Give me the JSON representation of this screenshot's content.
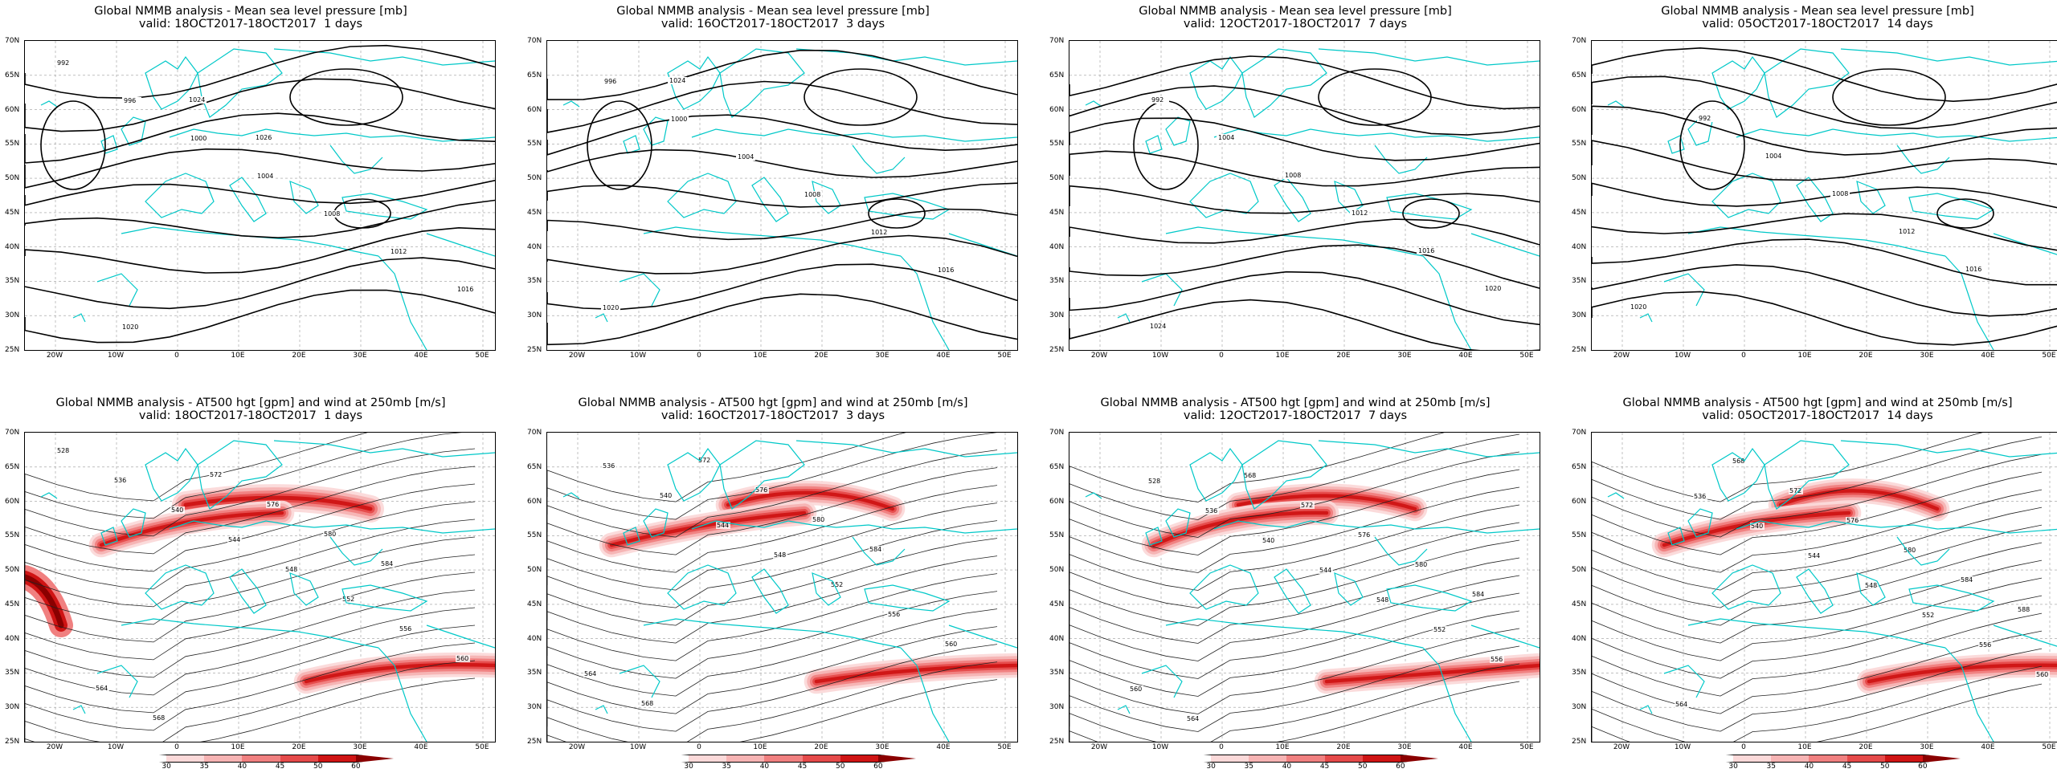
{
  "panels": [
    {
      "title": "Global NMMB analysis - Mean sea level pressure [mb]",
      "valid": "valid: 18OCT2017-18OCT2017  1 days",
      "kind": "mslp",
      "labels": [
        "992",
        "996",
        "1000",
        "1004",
        "1008",
        "1012",
        "1016",
        "1020",
        "1024",
        "1026"
      ]
    },
    {
      "title": "Global NMMB analysis - Mean sea level pressure [mb]",
      "valid": "valid: 16OCT2017-18OCT2017  3 days",
      "kind": "mslp",
      "labels": [
        "996",
        "1000",
        "1004",
        "1008",
        "1012",
        "1016",
        "1020",
        "1024"
      ]
    },
    {
      "title": "Global NMMB analysis - Mean sea level pressure [mb]",
      "valid": "valid: 12OCT2017-18OCT2017  7 days",
      "kind": "mslp",
      "labels": [
        "992",
        "1004",
        "1008",
        "1012",
        "1016",
        "1020",
        "1024"
      ]
    },
    {
      "title": "Global NMMB analysis - Mean sea level pressure [mb]",
      "valid": "valid: 05OCT2017-18OCT2017  14 days",
      "kind": "mslp",
      "labels": [
        "992",
        "1004",
        "1008",
        "1012",
        "1016",
        "1020"
      ]
    },
    {
      "title": "Global NMMB analysis - AT500 hgt [gpm] and wind at 250mb [m/s]",
      "valid": "valid: 18OCT2017-18OCT2017  1 days",
      "kind": "z500",
      "labels": [
        "528",
        "536",
        "540",
        "544",
        "548",
        "552",
        "556",
        "560",
        "564",
        "568",
        "572",
        "576",
        "580",
        "584"
      ]
    },
    {
      "title": "Global NMMB analysis - AT500 hgt [gpm] and wind at 250mb [m/s]",
      "valid": "valid: 16OCT2017-18OCT2017  3 days",
      "kind": "z500",
      "labels": [
        "536",
        "540",
        "544",
        "548",
        "552",
        "556",
        "560",
        "564",
        "568",
        "572",
        "576",
        "580",
        "584"
      ]
    },
    {
      "title": "Global NMMB analysis - AT500 hgt [gpm] and wind at 250mb [m/s]",
      "valid": "valid: 12OCT2017-18OCT2017  7 days",
      "kind": "z500",
      "labels": [
        "528",
        "536",
        "540",
        "544",
        "548",
        "552",
        "556",
        "560",
        "564",
        "568",
        "572",
        "576",
        "580",
        "584"
      ]
    },
    {
      "title": "Global NMMB analysis - AT500 hgt [gpm] and wind at 250mb [m/s]",
      "valid": "valid: 05OCT2017-18OCT2017  14 days",
      "kind": "z500",
      "labels": [
        "536",
        "540",
        "544",
        "548",
        "552",
        "556",
        "560",
        "564",
        "568",
        "572",
        "576",
        "580",
        "584",
        "588"
      ]
    }
  ],
  "lat_labels": [
    "70N",
    "65N",
    "60N",
    "55N",
    "50N",
    "45N",
    "40N",
    "35N",
    "30N",
    "25N"
  ],
  "lon_labels": [
    "20W",
    "10W",
    "0",
    "10E",
    "20E",
    "30E",
    "40E",
    "50E"
  ],
  "colorbar": {
    "values": [
      "30",
      "35",
      "40",
      "45",
      "50",
      "60"
    ],
    "colors": [
      "#ffffff",
      "#fbd9d9",
      "#f6b3b3",
      "#f08080",
      "#e54a4a",
      "#cf1414",
      "#8a0000"
    ]
  },
  "colors": {
    "contour": "#000000",
    "coast": "#00c8c8",
    "jet": "#e8453c",
    "grid": "#9a9a9a"
  }
}
